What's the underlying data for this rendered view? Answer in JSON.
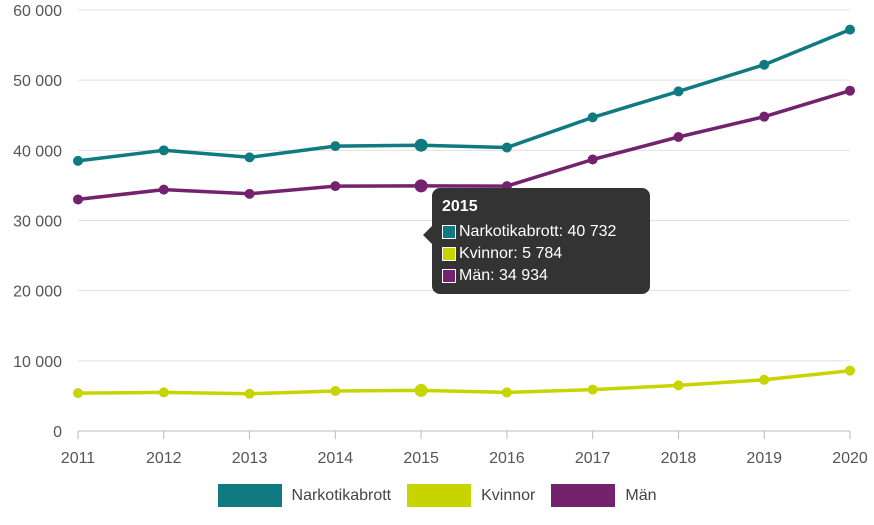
{
  "chart_data": {
    "type": "line",
    "x": [
      "2011",
      "2012",
      "2013",
      "2014",
      "2015",
      "2016",
      "2017",
      "2018",
      "2019",
      "2020"
    ],
    "ylim": [
      0,
      60000
    ],
    "yticks": [
      0,
      10000,
      20000,
      30000,
      40000,
      50000,
      60000
    ],
    "ytick_labels": [
      "0",
      "10 000",
      "20 000",
      "30 000",
      "40 000",
      "50 000",
      "60 000"
    ],
    "grid": true,
    "legend_position": "bottom",
    "series": [
      {
        "name": "Narkotikabrott",
        "color": "#0f7a80",
        "values": [
          38500,
          40000,
          39000,
          40600,
          40732,
          40400,
          44700,
          48400,
          52200,
          57200
        ]
      },
      {
        "name": "Kvinnor",
        "color": "#c8d400",
        "values": [
          5400,
          5500,
          5300,
          5700,
          5784,
          5500,
          5900,
          6500,
          7300,
          8600
        ]
      },
      {
        "name": "Män",
        "color": "#74216e",
        "values": [
          33000,
          34400,
          33800,
          34900,
          34934,
          34900,
          38700,
          41900,
          44800,
          48500
        ]
      }
    ],
    "highlight_index": 4
  },
  "tooltip": {
    "title": "2015",
    "rows": [
      {
        "label": "Narkotikabrott: 40 732",
        "color": "#0f7a80"
      },
      {
        "label": "Kvinnor: 5 784",
        "color": "#c8d400"
      },
      {
        "label": "Män: 34 934",
        "color": "#74216e"
      }
    ]
  }
}
